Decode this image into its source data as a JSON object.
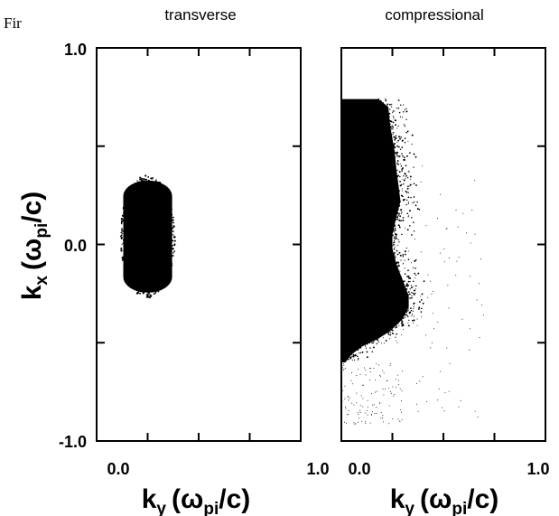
{
  "fragment_text": "Fir",
  "colors": {
    "foreground": "#000000",
    "background": "#ffffff"
  },
  "chart_data": [
    {
      "type": "scatter",
      "title": "transverse",
      "xlabel": "k",
      "xlabel_sub": "y",
      "xlabel_paren": "(ω",
      "xlabel_paren_sub": "pi",
      "xlabel_tail": "/c)",
      "ylabel": "k",
      "ylabel_sub": "x",
      "ylabel_paren": "(ω",
      "ylabel_paren_sub": "pi",
      "ylabel_tail": "/c)",
      "xlim": [
        0.0,
        1.0
      ],
      "ylim": [
        -1.0,
        1.0
      ],
      "xticks": [
        "0.0",
        "1.0"
      ],
      "yticks": [
        "1.0",
        "0.0",
        "-1.0"
      ],
      "grid": false,
      "blob": {
        "x_center": 0.25,
        "y_center": 0.04,
        "x_halfwidth": 0.13,
        "y_halfheight": 0.3
      }
    },
    {
      "type": "scatter",
      "title": "compressional",
      "xlabel": "k",
      "xlabel_sub": "y",
      "xlabel_paren": "(ω",
      "xlabel_paren_sub": "pi",
      "xlabel_tail": "/c)",
      "xlim": [
        0.0,
        1.0
      ],
      "ylim": [
        -1.0,
        1.0
      ],
      "xticks": [
        "0.0",
        "1.0"
      ],
      "grid": false,
      "blob": {
        "x_min": 0.0,
        "x_max": 0.45,
        "y_min": -0.6,
        "y_max": 0.74
      }
    }
  ]
}
